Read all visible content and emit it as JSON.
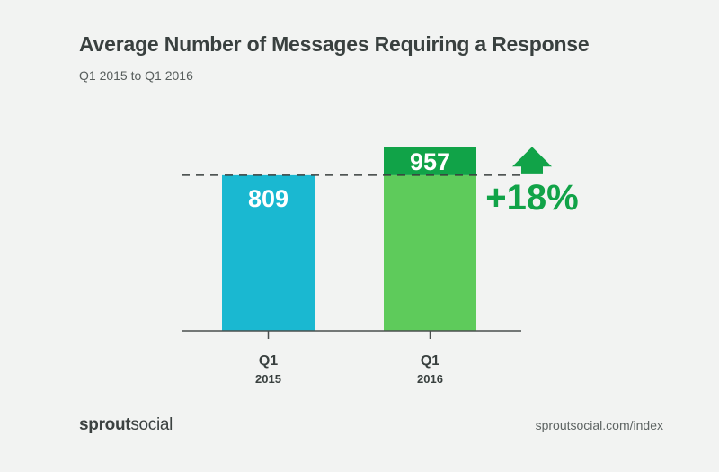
{
  "header": {
    "title": "Average Number of Messages Requiring a Response",
    "subtitle": "Q1 2015 to Q1 2016"
  },
  "chart_data": {
    "type": "bar",
    "categories": [
      {
        "label": "Q1",
        "sublabel": "2015"
      },
      {
        "label": "Q1",
        "sublabel": "2016"
      }
    ],
    "values": [
      809,
      957
    ],
    "data_labels": [
      "809",
      "957"
    ],
    "baseline_reference": 809,
    "annotation": {
      "text": "+18%",
      "direction": "up"
    },
    "ylim": [
      0,
      1000
    ],
    "grid": false,
    "colors": {
      "bar_2015": "#1ab8d1",
      "bar_2016": "#5ecb5b",
      "increase": "#11a348",
      "reference_line": "#3a3f3e",
      "axis": "#4a4f4e"
    }
  },
  "footer": {
    "brand_part1": "sprout",
    "brand_part2": "social",
    "url": "sproutsocial.com/index"
  }
}
